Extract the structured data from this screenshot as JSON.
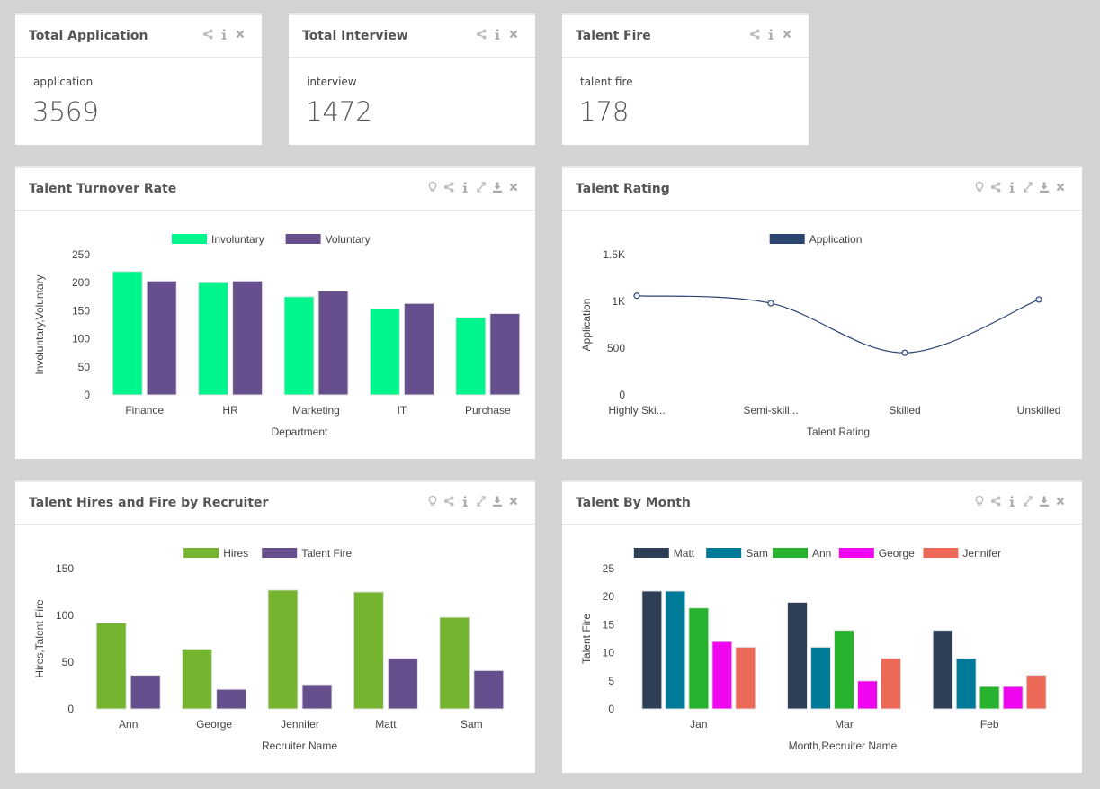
{
  "kpis": {
    "application": {
      "title": "Total Application",
      "label": "application",
      "value": "3569"
    },
    "interview": {
      "title": "Total Interview",
      "label": "interview",
      "value": "1472"
    },
    "talent_fire": {
      "title": "Talent Fire",
      "label": "talent fire",
      "value": "178"
    }
  },
  "panels": {
    "turnover": {
      "title": "Talent Turnover Rate"
    },
    "rating": {
      "title": "Talent Rating"
    },
    "hires": {
      "title": "Talent Hires and Fire by Recruiter"
    },
    "month": {
      "title": "Talent By Month"
    }
  },
  "icons": {
    "kpi_tools": [
      "share-icon",
      "info-icon",
      "close-icon"
    ],
    "panel_tools": [
      "lightbulb-icon",
      "share-icon",
      "info-icon",
      "expand-icon",
      "download-icon",
      "close-icon"
    ]
  },
  "colors": {
    "involuntary": "#00f68d",
    "voluntary": "#674f8e",
    "application": "#2b4570",
    "hires": "#74b42e",
    "talent_fire": "#674f8e",
    "matt": "#2d3e56",
    "sam": "#007a99",
    "ann": "#27b32e",
    "george": "#ef06ef",
    "jennifer": "#ec6957"
  },
  "chart_data": [
    {
      "type": "bar",
      "title": "Talent Turnover Rate",
      "categories": [
        "Finance",
        "HR",
        "Marketing",
        "IT",
        "Purchase"
      ],
      "series": [
        {
          "name": "Involuntary",
          "color": "#00f68d",
          "values": [
            220,
            200,
            175,
            153,
            138
          ]
        },
        {
          "name": "Voluntary",
          "color": "#674f8e",
          "values": [
            203,
            203,
            185,
            163,
            145
          ]
        }
      ],
      "xlabel": "Department",
      "ylabel": "Involuntary,Voluntary",
      "ylim": [
        0,
        250
      ],
      "yticks": [
        "0",
        "50",
        "100",
        "150",
        "200",
        "250"
      ],
      "legend": "top"
    },
    {
      "type": "line",
      "title": "Talent Rating",
      "categories": [
        "Highly Ski...",
        "Semi-skill...",
        "Skilled",
        "Unskilled"
      ],
      "series": [
        {
          "name": "Application",
          "color": "#2b4570",
          "values": [
            1060,
            980,
            450,
            1020
          ]
        }
      ],
      "xlabel": "Talent Rating",
      "ylabel": "Application",
      "ylim": [
        0,
        1500
      ],
      "yticks": [
        "0",
        "500",
        "1K",
        "1.5K"
      ],
      "legend": "top"
    },
    {
      "type": "bar",
      "title": "Talent Hires and Fire by Recruiter",
      "categories": [
        "Ann",
        "George",
        "Jennifer",
        "Matt",
        "Sam"
      ],
      "series": [
        {
          "name": "Hires",
          "color": "#74b42e",
          "values": [
            92,
            64,
            127,
            125,
            98
          ]
        },
        {
          "name": "Talent Fire",
          "color": "#674f8e",
          "values": [
            36,
            21,
            26,
            54,
            41
          ]
        }
      ],
      "xlabel": "Recruiter Name",
      "ylabel": "Hires,Talent Fire",
      "ylim": [
        0,
        150
      ],
      "yticks": [
        "0",
        "50",
        "100",
        "150"
      ],
      "legend": "top"
    },
    {
      "type": "bar",
      "title": "Talent By Month",
      "categories": [
        "Jan",
        "Mar",
        "Feb"
      ],
      "series": [
        {
          "name": "Matt",
          "color": "#2d3e56",
          "values": [
            21,
            19,
            14
          ]
        },
        {
          "name": "Sam",
          "color": "#007a99",
          "values": [
            21,
            11,
            9
          ]
        },
        {
          "name": "Ann",
          "color": "#27b32e",
          "values": [
            18,
            14,
            4
          ]
        },
        {
          "name": "George",
          "color": "#ef06ef",
          "values": [
            12,
            5,
            4
          ]
        },
        {
          "name": "Jennifer",
          "color": "#ec6957",
          "values": [
            11,
            9,
            6
          ]
        }
      ],
      "xlabel": "Month,Recruiter Name",
      "ylabel": "Talent Fire",
      "ylim": [
        0,
        25
      ],
      "yticks": [
        "0",
        "5",
        "10",
        "15",
        "20",
        "25"
      ],
      "legend": "top"
    }
  ]
}
